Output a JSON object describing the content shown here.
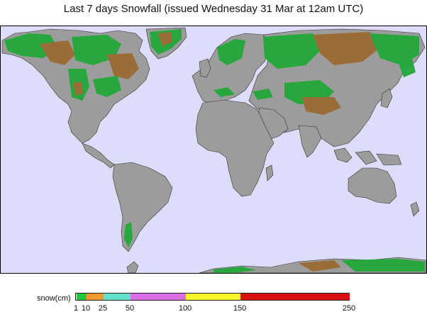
{
  "title": "Last 7 days Snowfall (issued Wednesday 31 Mar at 12am UTC)",
  "legend": {
    "label": "snow(cm)",
    "ticks": [
      "1",
      "10",
      "25",
      "50",
      "100",
      "150",
      "250"
    ],
    "bands": [
      {
        "from": 1,
        "to": 10,
        "color": "#22c83c"
      },
      {
        "from": 10,
        "to": 25,
        "color": "#ee9a2e"
      },
      {
        "from": 25,
        "to": 50,
        "color": "#63e0cc"
      },
      {
        "from": 50,
        "to": 100,
        "color": "#dd6ee6"
      },
      {
        "from": 100,
        "to": 150,
        "color": "#f7f72a"
      },
      {
        "from": 150,
        "to": 250,
        "color": "#d80f0f"
      }
    ]
  },
  "colors": {
    "ocean": "#ddddfb",
    "land": "#9c9c9c",
    "snow_green": "#22a83a",
    "snow_brown": "#9a6a32"
  }
}
